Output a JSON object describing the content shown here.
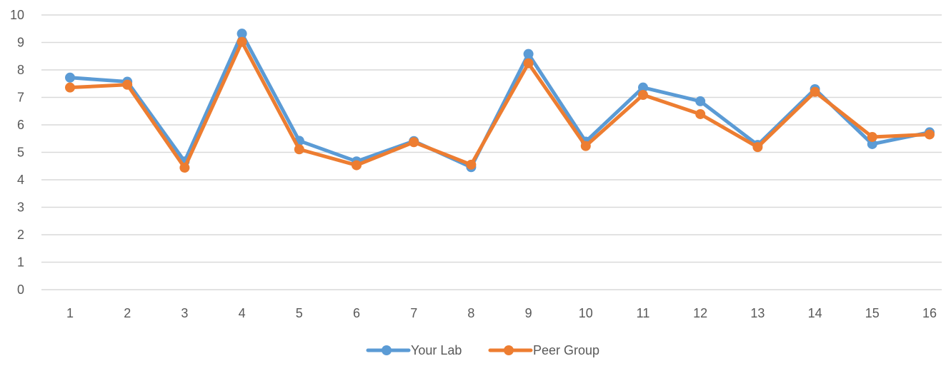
{
  "chart_data": {
    "type": "line",
    "title": "",
    "xlabel": "",
    "ylabel": "",
    "x": [
      1,
      2,
      3,
      4,
      5,
      6,
      7,
      8,
      9,
      10,
      11,
      12,
      13,
      14,
      15,
      16
    ],
    "x_tick_labels": [
      "1",
      "2",
      "3",
      "4",
      "5",
      "6",
      "7",
      "8",
      "9",
      "10",
      "11",
      "12",
      "13",
      "14",
      "15",
      "16"
    ],
    "ylim": [
      0,
      10
    ],
    "y_ticks": [
      0,
      1,
      2,
      3,
      4,
      5,
      6,
      7,
      8,
      9,
      10
    ],
    "y_tick_labels": [
      "0",
      "1",
      "2",
      "3",
      "4",
      "5",
      "6",
      "7",
      "8",
      "9",
      "10"
    ],
    "grid": true,
    "legend_position": "bottom-center",
    "series": [
      {
        "name": "Your Lab",
        "color": "#5B9BD5",
        "values": [
          7.72,
          7.57,
          4.67,
          9.32,
          5.42,
          4.67,
          5.41,
          4.46,
          8.58,
          5.39,
          7.36,
          6.86,
          5.27,
          7.3,
          5.3,
          5.73
        ]
      },
      {
        "name": "Peer Group",
        "color": "#ED7D31",
        "values": [
          7.36,
          7.46,
          4.44,
          9.02,
          5.11,
          4.53,
          5.37,
          4.55,
          8.24,
          5.23,
          7.09,
          6.39,
          5.19,
          7.2,
          5.56,
          5.65
        ]
      }
    ]
  }
}
